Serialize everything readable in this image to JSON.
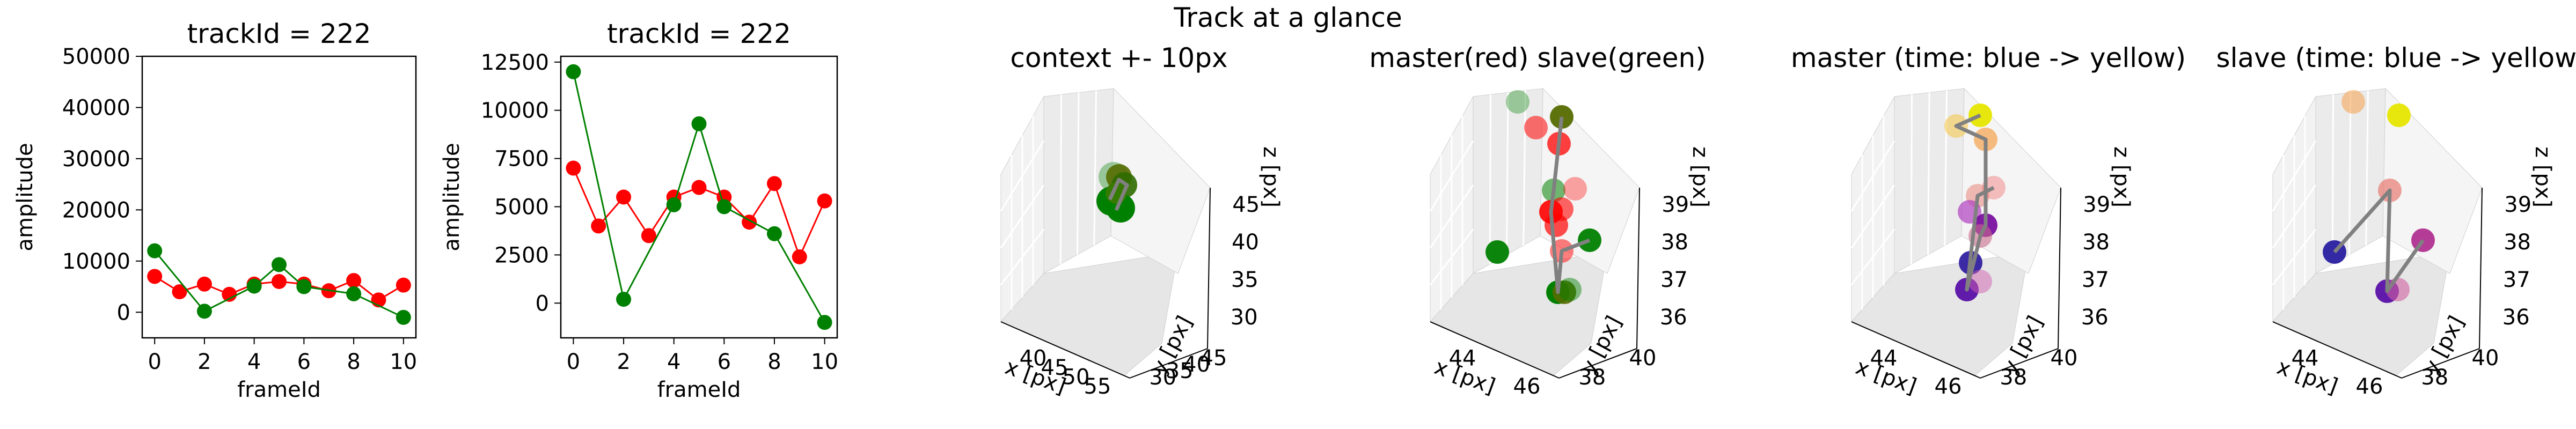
{
  "suptitle": "Track at a glance",
  "colors": {
    "master": "#ff0000",
    "slave": "#008000",
    "grey": "#808080"
  },
  "chart_data": [
    {
      "type": "line",
      "title": "trackId = 222",
      "xlabel": "frameId",
      "ylabel": "amplitude",
      "xlim": [
        -0.5,
        10.5
      ],
      "ylim": [
        -5000,
        50000
      ],
      "xticks": [
        "0",
        "2",
        "4",
        "6",
        "8",
        "10"
      ],
      "yticks": [
        "0",
        "10000",
        "20000",
        "30000",
        "40000",
        "50000"
      ],
      "series": [
        {
          "color": "#ff0000",
          "points": [
            [
              0,
              7000
            ],
            [
              1,
              4000
            ],
            [
              2,
              5500
            ],
            [
              3,
              3500
            ],
            [
              4,
              5500
            ],
            [
              5,
              6000
            ],
            [
              6,
              5500
            ],
            [
              7,
              4200
            ],
            [
              8,
              6200
            ],
            [
              9,
              2400
            ],
            [
              10,
              5300
            ]
          ]
        },
        {
          "color": "#008000",
          "points": [
            [
              0,
              12000
            ],
            [
              2,
              200
            ],
            [
              4,
              5100
            ],
            [
              5,
              9300
            ],
            [
              6,
              5000
            ],
            [
              8,
              3600
            ],
            [
              10,
              -1000
            ]
          ]
        }
      ]
    },
    {
      "type": "line",
      "title": "trackId = 222",
      "xlabel": "frameId",
      "ylabel": "amplitude",
      "xlim": [
        -0.5,
        10.5
      ],
      "ylim": [
        -1800,
        12800
      ],
      "xticks": [
        "0",
        "2",
        "4",
        "6",
        "8",
        "10"
      ],
      "yticks": [
        "0",
        "2500",
        "5000",
        "7500",
        "10000",
        "12500"
      ],
      "series": [
        {
          "color": "#ff0000",
          "points": [
            [
              0,
              7000
            ],
            [
              1,
              4000
            ],
            [
              2,
              5500
            ],
            [
              3,
              3500
            ],
            [
              4,
              5500
            ],
            [
              5,
              6000
            ],
            [
              6,
              5500
            ],
            [
              7,
              4200
            ],
            [
              8,
              6200
            ],
            [
              9,
              2400
            ],
            [
              10,
              5300
            ]
          ]
        },
        {
          "color": "#008000",
          "points": [
            [
              0,
              12000
            ],
            [
              2,
              200
            ],
            [
              4,
              5100
            ],
            [
              5,
              9300
            ],
            [
              6,
              5000
            ],
            [
              8,
              3600
            ],
            [
              10,
              -1000
            ]
          ]
        }
      ]
    },
    {
      "type": "scatter",
      "title": "context +- 10px",
      "xlabel": "x [px]",
      "ylabel": "y [px]",
      "zlabel": "z [px]",
      "xticks": [
        "40",
        "45",
        "50",
        "55"
      ],
      "yticks": [
        "30",
        "35",
        "40",
        "45"
      ],
      "zticks": [
        "30",
        "35",
        "40",
        "45"
      ]
    },
    {
      "type": "scatter",
      "title": "master(red) slave(green)",
      "xlabel": "x [px]",
      "ylabel": "y [px]",
      "zlabel": "z [px]",
      "xticks": [
        "44",
        "46"
      ],
      "yticks": [
        "38",
        "40"
      ],
      "zticks": [
        "36",
        "37",
        "38",
        "39"
      ]
    },
    {
      "type": "scatter",
      "title": "master (time: blue -> yellow)",
      "xlabel": "x [px]",
      "ylabel": "y [px]",
      "zlabel": "z [px]",
      "xticks": [
        "44",
        "46"
      ],
      "yticks": [
        "38",
        "40"
      ],
      "zticks": [
        "36",
        "37",
        "38",
        "39"
      ]
    },
    {
      "type": "scatter",
      "title": "slave (time: blue -> yellow)",
      "xlabel": "x [px]",
      "ylabel": "y [px]",
      "zlabel": "z [px]",
      "xticks": [
        "44",
        "46"
      ],
      "yticks": [
        "38",
        "40"
      ],
      "zticks": [
        "36",
        "37",
        "38",
        "39"
      ]
    }
  ]
}
